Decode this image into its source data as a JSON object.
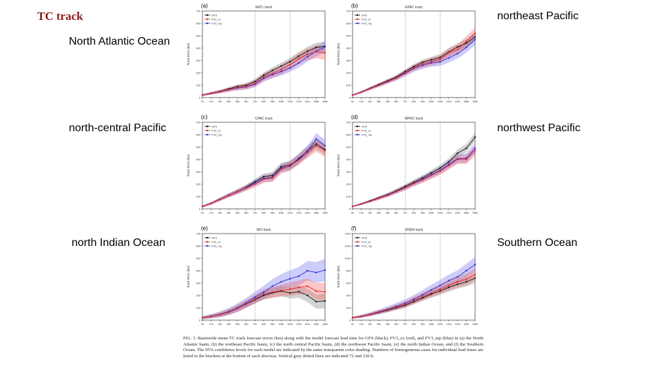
{
  "slide": {
    "title": "TC track",
    "labels": {
      "natl": "North Atlantic Ocean",
      "nepac": "northeast Pacific",
      "ncpac": "north-central Pacific",
      "nwpac": "northwest Pacific",
      "nio": "north Indian Ocean",
      "so": "Southern Ocean"
    },
    "caption": "FIG. 3. Basinwide mean TC track forecast errors (km) along with the model forecast lead time for GFS (black), FV3_zx (red), and FV3_mp (blue) in (a) the North Atlantic basin, (b) the northeast Pacific basin, (c) the north central Pacific basin, (d) the northwest Pacific basin, (e) the north Indian Ocean, and (f) the Southern Ocean. The 95% confidence levels for each model are indicated by the same transparent color shading. Numbers of homogeneous cases for individual lead times are listed in the brackets at the bottom of each abscissa. Vertical gray dotted lines are indicated 72 and 120 h."
  },
  "colors": {
    "GFS": "#111111",
    "FV3_zx": "#e0272a",
    "FV3_mp": "#2b2bd6",
    "GFS_band": "#808080",
    "FV3_zx_band": "#f06060",
    "FV3_mp_band": "#7070f0"
  },
  "chart_data": [
    {
      "type": "line",
      "panel": "(a)",
      "title": "NATL track",
      "xlabel": "",
      "ylabel": "Track Error (km)",
      "x": [
        0,
        12,
        24,
        36,
        48,
        60,
        72,
        84,
        96,
        108,
        120,
        132,
        144,
        156,
        168
      ],
      "x_tick_labels": [
        "0h",
        "12h",
        "24h",
        "36h",
        "48h",
        "60h",
        "72h",
        "84h",
        "96h",
        "108h",
        "120h",
        "132h",
        "144h",
        "156h",
        "168h"
      ],
      "ylim": [
        0,
        700
      ],
      "yticks": [
        0,
        100,
        200,
        300,
        400,
        500,
        600,
        700
      ],
      "vlines": [
        72,
        120
      ],
      "legend": [
        "GFS",
        "FV3_zx",
        "FV3_mp"
      ],
      "series": [
        {
          "name": "GFS",
          "values": [
            20,
            35,
            50,
            70,
            90,
            100,
            130,
            180,
            220,
            255,
            290,
            335,
            375,
            405,
            415
          ],
          "band": 40
        },
        {
          "name": "FV3_zx",
          "values": [
            20,
            34,
            48,
            65,
            80,
            90,
            115,
            165,
            195,
            225,
            265,
            315,
            350,
            370,
            360
          ],
          "band": 55
        },
        {
          "name": "FV3_mp",
          "values": [
            20,
            33,
            47,
            63,
            77,
            86,
            108,
            155,
            185,
            210,
            240,
            280,
            330,
            375,
            410
          ],
          "band": 45
        }
      ]
    },
    {
      "type": "line",
      "panel": "(b)",
      "title": "EPAC track",
      "xlabel": "",
      "ylabel": "Track Error (km)",
      "x": [
        0,
        12,
        24,
        36,
        48,
        60,
        72,
        84,
        96,
        108,
        120,
        132,
        144,
        156,
        168
      ],
      "x_tick_labels": [
        "0h",
        "12h",
        "24h",
        "36h",
        "48h",
        "60h",
        "72h",
        "84h",
        "96h",
        "108h",
        "120h",
        "132h",
        "144h",
        "156h",
        "168h"
      ],
      "ylim": [
        0,
        700
      ],
      "yticks": [
        0,
        100,
        200,
        300,
        400,
        500,
        600,
        700
      ],
      "vlines": [
        72,
        120
      ],
      "legend": [
        "GFS",
        "FV3_zx",
        "FV3_mp"
      ],
      "series": [
        {
          "name": "GFS",
          "values": [
            20,
            45,
            75,
            105,
            135,
            165,
            210,
            250,
            285,
            305,
            325,
            370,
            410,
            440,
            490
          ],
          "band": 35
        },
        {
          "name": "FV3_zx",
          "values": [
            20,
            44,
            73,
            102,
            130,
            160,
            200,
            240,
            270,
            290,
            310,
            365,
            390,
            455,
            520
          ],
          "band": 45
        },
        {
          "name": "FV3_mp",
          "values": [
            20,
            44,
            72,
            100,
            128,
            158,
            195,
            235,
            260,
            280,
            290,
            320,
            355,
            405,
            470
          ],
          "band": 45
        }
      ]
    },
    {
      "type": "line",
      "panel": "(c)",
      "title": "CPAC track",
      "xlabel": "",
      "ylabel": "Track Error (km)",
      "x": [
        0,
        12,
        24,
        36,
        48,
        60,
        72,
        84,
        96,
        108,
        120,
        132,
        144,
        156,
        168
      ],
      "x_tick_labels": [
        "0h",
        "12h",
        "24h",
        "36h",
        "48h",
        "60h",
        "72h",
        "84h",
        "96h",
        "108h",
        "120h",
        "132h",
        "144h",
        "156h",
        "168h"
      ],
      "ylim": [
        0,
        700
      ],
      "yticks": [
        0,
        100,
        200,
        300,
        400,
        500,
        600,
        700
      ],
      "vlines": [
        72,
        120
      ],
      "legend": [
        "GFS",
        "FV3_zx",
        "FV3_mp"
      ],
      "series": [
        {
          "name": "GFS",
          "values": [
            20,
            45,
            78,
            110,
            140,
            175,
            220,
            260,
            270,
            340,
            355,
            400,
            470,
            525,
            480
          ],
          "band": 45
        },
        {
          "name": "FV3_zx",
          "values": [
            20,
            44,
            76,
            108,
            138,
            170,
            200,
            240,
            250,
            320,
            350,
            395,
            455,
            510,
            470
          ],
          "band": 50
        },
        {
          "name": "FV3_mp",
          "values": [
            20,
            45,
            77,
            110,
            140,
            172,
            210,
            245,
            255,
            330,
            345,
            410,
            465,
            565,
            510
          ],
          "band": 50
        }
      ]
    },
    {
      "type": "line",
      "panel": "(d)",
      "title": "WPAC track",
      "xlabel": "",
      "ylabel": "Track Error (km)",
      "x": [
        0,
        12,
        24,
        36,
        48,
        60,
        72,
        84,
        96,
        108,
        120,
        132,
        144,
        156,
        168
      ],
      "x_tick_labels": [
        "0h",
        "12h",
        "24h",
        "36h",
        "48h",
        "60h",
        "72h",
        "84h",
        "96h",
        "108h",
        "120h",
        "132h",
        "144h",
        "156h",
        "168h"
      ],
      "ylim": [
        0,
        700
      ],
      "yticks": [
        0,
        100,
        200,
        300,
        400,
        500,
        600,
        700
      ],
      "vlines": [
        72,
        120
      ],
      "legend": [
        "GFS",
        "FV3_zx",
        "FV3_mp"
      ],
      "series": [
        {
          "name": "GFS",
          "values": [
            20,
            40,
            65,
            90,
            115,
            145,
            180,
            215,
            250,
            290,
            330,
            380,
            450,
            490,
            580
          ],
          "band": 35
        },
        {
          "name": "FV3_zx",
          "values": [
            20,
            39,
            62,
            86,
            110,
            140,
            170,
            205,
            235,
            270,
            305,
            350,
            400,
            400,
            470
          ],
          "band": 40
        },
        {
          "name": "FV3_mp",
          "values": [
            20,
            39,
            62,
            87,
            112,
            142,
            172,
            207,
            240,
            275,
            310,
            360,
            405,
            410,
            490
          ],
          "band": 40
        }
      ]
    },
    {
      "type": "line",
      "panel": "(e)",
      "title": "NIO track",
      "xlabel": "",
      "ylabel": "Track Error (km)",
      "x": [
        0,
        12,
        24,
        36,
        48,
        60,
        72,
        84,
        96,
        108,
        120,
        132,
        144,
        156,
        168
      ],
      "x_tick_labels": [
        "0h",
        "12h",
        "24h",
        "36h",
        "48h",
        "60h",
        "72h",
        "84h",
        "96h",
        "108h",
        "120h",
        "132h",
        "144h",
        "156h",
        "168h"
      ],
      "ylim": [
        0,
        700
      ],
      "yticks": [
        0,
        100,
        200,
        300,
        400,
        500,
        600,
        700
      ],
      "vlines": [
        72,
        120
      ],
      "legend": [
        "GFS",
        "FV3_zx",
        "FV3_mp"
      ],
      "series": [
        {
          "name": "GFS",
          "values": [
            20,
            30,
            45,
            65,
            95,
            130,
            165,
            200,
            220,
            235,
            220,
            230,
            200,
            150,
            155
          ],
          "band": 60
        },
        {
          "name": "FV3_zx",
          "values": [
            20,
            30,
            45,
            66,
            96,
            132,
            170,
            210,
            225,
            240,
            250,
            265,
            275,
            235,
            230
          ],
          "band": 70
        },
        {
          "name": "FV3_mp",
          "values": [
            20,
            32,
            47,
            70,
            100,
            140,
            185,
            225,
            275,
            310,
            335,
            355,
            400,
            385,
            405
          ],
          "band": 90
        }
      ]
    },
    {
      "type": "line",
      "panel": "(f)",
      "title": "SHEM track",
      "xlabel": "",
      "ylabel": "Track Error (km)",
      "x": [
        0,
        12,
        24,
        36,
        48,
        60,
        72,
        84,
        96,
        108,
        120,
        132,
        144,
        156,
        168
      ],
      "x_tick_labels": [
        "0h",
        "12h",
        "24h",
        "36h",
        "48h",
        "60h",
        "72h",
        "84h",
        "96h",
        "108h",
        "120h",
        "132h",
        "144h",
        "156h",
        "168h"
      ],
      "ylim": [
        0,
        1400
      ],
      "yticks": [
        0,
        200,
        400,
        600,
        800,
        1000,
        1200,
        1400
      ],
      "vlines": [
        72,
        120
      ],
      "legend": [
        "GFS",
        "FV3_zx",
        "FV3_mp"
      ],
      "series": [
        {
          "name": "GFS",
          "values": [
            40,
            60,
            90,
            125,
            160,
            200,
            240,
            300,
            360,
            420,
            470,
            530,
            580,
            620,
            680
          ],
          "band": 80
        },
        {
          "name": "FV3_zx",
          "values": [
            40,
            62,
            92,
            130,
            168,
            210,
            255,
            320,
            380,
            440,
            500,
            560,
            620,
            660,
            740
          ],
          "band": 100
        },
        {
          "name": "FV3_mp",
          "values": [
            40,
            64,
            95,
            135,
            175,
            225,
            275,
            340,
            410,
            490,
            560,
            640,
            700,
            800,
            900
          ],
          "band": 120
        }
      ]
    }
  ]
}
